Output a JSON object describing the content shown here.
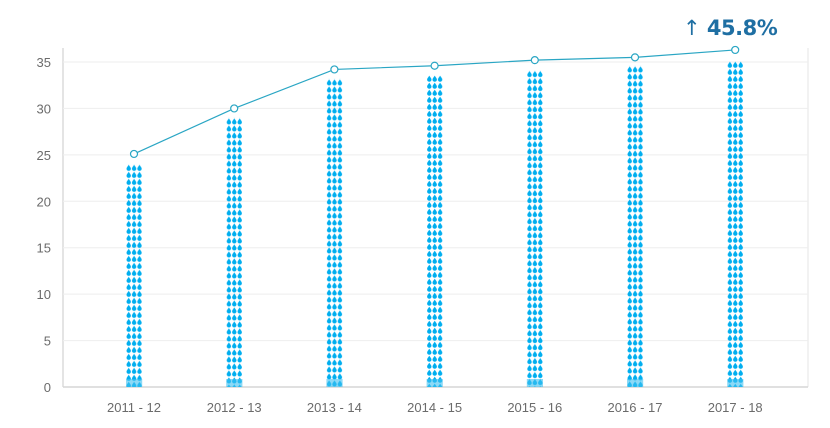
{
  "chart_data": {
    "type": "bar",
    "categories": [
      "2011 - 12",
      "2012 - 13",
      "2013 - 14",
      "2014 - 15",
      "2015 - 16",
      "2016 - 17",
      "2017 - 18"
    ],
    "series": [
      {
        "type": "bar",
        "values": [
          24.0,
          29.0,
          33.2,
          33.6,
          34.1,
          34.6,
          35.1
        ],
        "color": "#00aeef",
        "style": "droplet-icons"
      },
      {
        "type": "line",
        "values": [
          25.1,
          30.0,
          34.2,
          34.6,
          35.2,
          35.5,
          36.3
        ],
        "color": "#2aa6c4"
      }
    ],
    "yticks": [
      0,
      5,
      10,
      15,
      20,
      25,
      30,
      35
    ],
    "ylim": [
      0,
      36.5
    ],
    "grid": true,
    "annotation": {
      "icon": "arrow-up-icon",
      "text": "45.8%",
      "color": "#1f6fa3"
    }
  }
}
